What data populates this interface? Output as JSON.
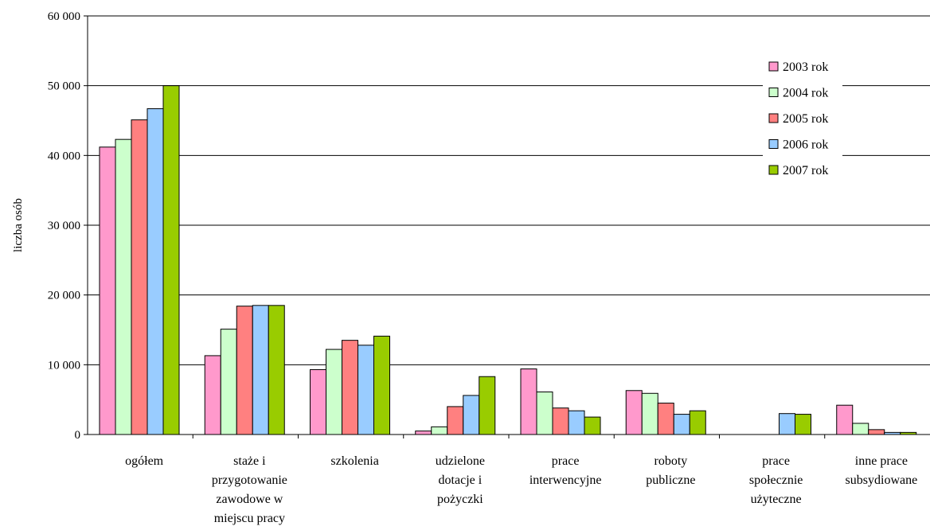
{
  "chart_data": {
    "type": "bar",
    "title": "",
    "xlabel": "",
    "ylabel": "liczba osób",
    "ylim": [
      0,
      60000
    ],
    "yticks": [
      0,
      10000,
      20000,
      30000,
      40000,
      50000,
      60000
    ],
    "ytick_labels": [
      "0",
      "10 000",
      "20 000",
      "30 000",
      "40 000",
      "50 000",
      "60 000"
    ],
    "grid": true,
    "legend_position": "right",
    "categories": [
      [
        "ogółem"
      ],
      [
        "staże i",
        "przygotowanie",
        "zawodowe w",
        "miejscu pracy"
      ],
      [
        "szkolenia"
      ],
      [
        "udzielone",
        "dotacje i",
        "pożyczki"
      ],
      [
        "prace",
        "interwencyjne"
      ],
      [
        "roboty",
        "publiczne"
      ],
      [
        "prace",
        "społecznie",
        "użyteczne"
      ],
      [
        "inne prace",
        "subsydiowane"
      ]
    ],
    "series": [
      {
        "name": "2003 rok",
        "color": "#ff99cc",
        "values": [
          41200,
          11300,
          9300,
          500,
          9400,
          6300,
          0,
          4200
        ]
      },
      {
        "name": "2004 rok",
        "color": "#ccffcc",
        "values": [
          42300,
          15100,
          12200,
          1100,
          6100,
          5900,
          0,
          1600
        ]
      },
      {
        "name": "2005 rok",
        "color": "#ff8080",
        "values": [
          45100,
          18400,
          13500,
          4000,
          3800,
          4500,
          0,
          700
        ]
      },
      {
        "name": "2006 rok",
        "color": "#99ccff",
        "values": [
          46700,
          18500,
          12800,
          5600,
          3400,
          2900,
          3000,
          300
        ]
      },
      {
        "name": "2007 rok",
        "color": "#99cc00",
        "values": [
          50000,
          18500,
          14100,
          8300,
          2500,
          3400,
          2900,
          300
        ]
      }
    ]
  }
}
